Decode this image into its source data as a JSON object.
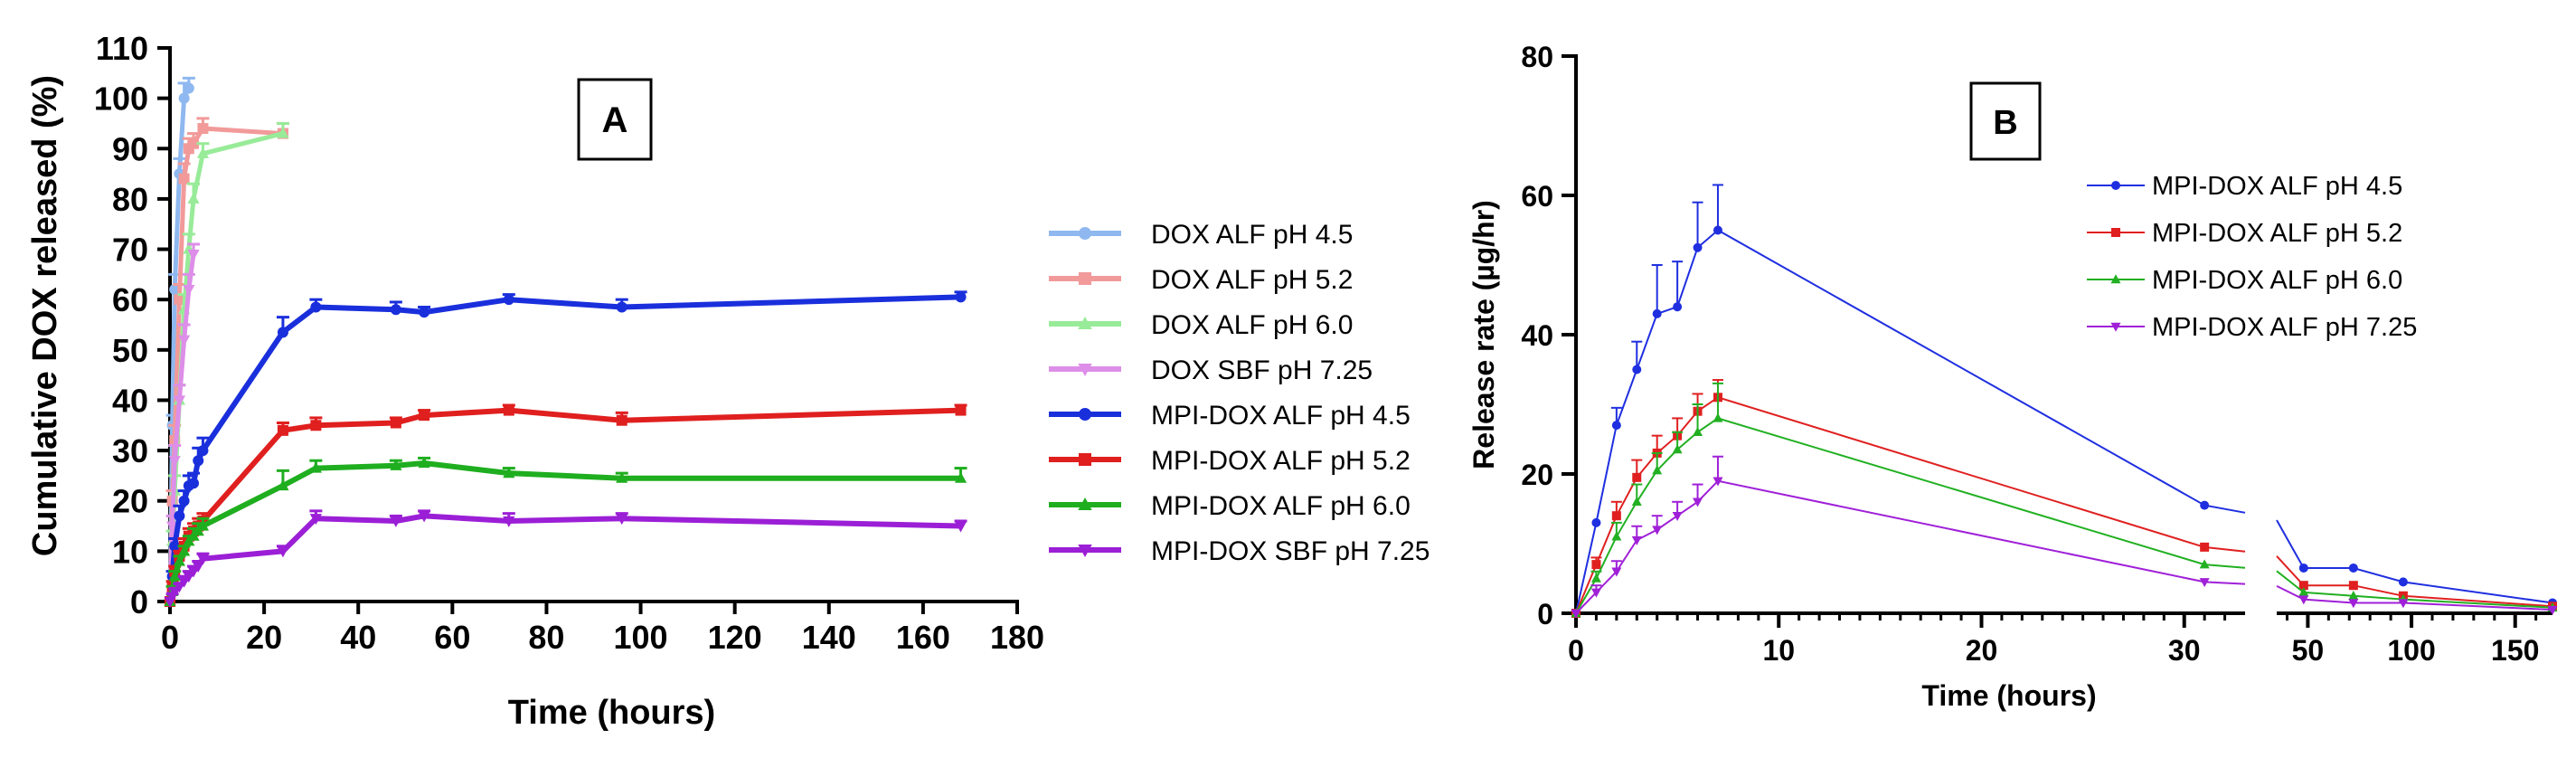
{
  "panel_labels": {
    "a": "A",
    "b": "B"
  },
  "chart_data": [
    {
      "type": "line",
      "panel": "A",
      "title": "",
      "xlabel": "Time (hours)",
      "ylabel": "Cumulative DOX released (%)",
      "xlim": [
        0,
        180
      ],
      "ylim": [
        0,
        110
      ],
      "xticks": [
        0,
        20,
        40,
        60,
        80,
        100,
        120,
        140,
        160,
        180
      ],
      "yticks": [
        0,
        10,
        20,
        30,
        40,
        50,
        60,
        70,
        80,
        90,
        100,
        110
      ],
      "xtick_labels": [
        "0",
        "20",
        "40",
        "60",
        "80",
        "100",
        "120",
        "140",
        "160",
        "180"
      ],
      "ytick_labels": [
        "0",
        "10",
        "20",
        "30",
        "40",
        "50",
        "60",
        "70",
        "80",
        "90",
        "100",
        "110"
      ],
      "grid": false,
      "legend_position": "right",
      "series": [
        {
          "name": "DOX ALF pH 4.5",
          "color": "#8fb8f0",
          "marker": "circle",
          "x": [
            0,
            0.5,
            1,
            2,
            3,
            4
          ],
          "y": [
            0,
            35,
            62,
            85,
            100,
            102
          ],
          "err": [
            0,
            2,
            3,
            3,
            3,
            2
          ]
        },
        {
          "name": "DOX ALF pH 5.2",
          "color": "#f29a9a",
          "marker": "square",
          "x": [
            0,
            0.5,
            1,
            2,
            3,
            4,
            5,
            7,
            24
          ],
          "y": [
            0,
            20,
            32,
            60,
            84,
            90,
            91,
            94,
            93
          ],
          "err": [
            0,
            2,
            3,
            3,
            3,
            2,
            2,
            2,
            2
          ]
        },
        {
          "name": "DOX ALF pH 6.0",
          "color": "#98eb98",
          "marker": "triangle-up",
          "x": [
            0,
            0.5,
            1,
            2,
            3,
            4,
            5,
            7,
            24
          ],
          "y": [
            0,
            12,
            22,
            40,
            58,
            70,
            80,
            89,
            93
          ],
          "err": [
            0,
            2,
            3,
            3,
            3,
            3,
            3,
            2,
            2
          ]
        },
        {
          "name": "DOX SBF pH 7.25",
          "color": "#dd8ee8",
          "marker": "triangle-down",
          "x": [
            0,
            0.5,
            1,
            2,
            3,
            4,
            5
          ],
          "y": [
            0,
            15,
            28,
            40,
            52,
            62,
            69
          ],
          "err": [
            0,
            2,
            3,
            3,
            3,
            3,
            2
          ]
        },
        {
          "name": "MPI-DOX ALF pH 4.5",
          "color": "#1a2fdc",
          "marker": "circle",
          "x": [
            0,
            0.5,
            1,
            2,
            3,
            4,
            5,
            6,
            7,
            24,
            31,
            48,
            54,
            72,
            96,
            168
          ],
          "y": [
            0,
            5,
            11,
            17,
            20,
            23,
            23.5,
            28,
            30,
            53.5,
            58.5,
            58,
            57.5,
            60,
            58.5,
            60.5
          ],
          "err": [
            0,
            1,
            1.5,
            2,
            2,
            2,
            2,
            2.5,
            2.5,
            3,
            1.5,
            1.5,
            1,
            1,
            1.5,
            1
          ]
        },
        {
          "name": "MPI-DOX ALF pH 5.2",
          "color": "#e01f1f",
          "marker": "square",
          "x": [
            0,
            0.5,
            1,
            2,
            3,
            4,
            5,
            6,
            7,
            24,
            31,
            48,
            54,
            72,
            96,
            168
          ],
          "y": [
            0,
            3,
            6,
            9,
            11,
            13,
            14,
            15,
            16,
            34,
            35,
            35.5,
            37,
            38,
            36,
            38
          ],
          "err": [
            0,
            1,
            1,
            1,
            1.5,
            1.5,
            1.5,
            1.5,
            1.5,
            1.5,
            1.5,
            1,
            1,
            1,
            1.5,
            1
          ]
        },
        {
          "name": "MPI-DOX ALF pH 6.0",
          "color": "#1fae1f",
          "marker": "triangle-up",
          "x": [
            0,
            0.5,
            1,
            2,
            3,
            4,
            5,
            6,
            7,
            24,
            31,
            48,
            54,
            72,
            96,
            168
          ],
          "y": [
            0,
            2,
            5,
            8,
            10,
            12,
            13,
            14,
            15,
            23,
            26.5,
            27,
            27.5,
            25.5,
            24.5,
            24.5
          ],
          "err": [
            0,
            1,
            1,
            1,
            1,
            1,
            1.5,
            1.5,
            1.5,
            3,
            1.5,
            1,
            1,
            1,
            1,
            2
          ]
        },
        {
          "name": "MPI-DOX SBF pH 7.25",
          "color": "#9b1fd6",
          "marker": "triangle-down",
          "x": [
            0,
            0.5,
            1,
            2,
            3,
            4,
            5,
            6,
            7,
            24,
            31,
            48,
            54,
            72,
            96,
            168
          ],
          "y": [
            0,
            1,
            2,
            3,
            4,
            5,
            6,
            7,
            8.5,
            10,
            16.5,
            16,
            17,
            16,
            16.5,
            15
          ],
          "err": [
            0,
            0.5,
            0.5,
            0.5,
            1,
            1,
            1,
            1,
            1,
            1,
            1.5,
            1,
            1,
            1.5,
            1,
            1
          ]
        }
      ]
    },
    {
      "type": "line",
      "panel": "B",
      "title": "",
      "xlabel": "Time (hours)",
      "ylabel": "Release rate (µg/hr)",
      "x_axis_broken": true,
      "x_segments": [
        {
          "range": [
            0,
            33
          ]
        },
        {
          "range": [
            35,
            168
          ]
        }
      ],
      "xticks": [
        0,
        10,
        20,
        30,
        50,
        100,
        150
      ],
      "xtick_labels": [
        "0",
        "10",
        "20",
        "30",
        "50",
        "100",
        "150"
      ],
      "ylim": [
        0,
        80
      ],
      "yticks": [
        0,
        20,
        40,
        60,
        80
      ],
      "ytick_labels": [
        "0",
        "20",
        "40",
        "60",
        "80"
      ],
      "grid": false,
      "legend_position": "top-right",
      "series": [
        {
          "name": "MPI-DOX ALF pH 4.5",
          "color": "#1f2fe0",
          "marker": "circle",
          "x": [
            0,
            1,
            2,
            3,
            4,
            5,
            6,
            7,
            31,
            48,
            72,
            96,
            168
          ],
          "y": [
            0,
            13,
            27,
            35,
            43,
            44,
            52.5,
            55,
            15.5,
            6.5,
            6.5,
            4.5,
            1.5
          ],
          "err": [
            0,
            0,
            2.5,
            4,
            7,
            6.5,
            6.5,
            6.5,
            0,
            0,
            0,
            0,
            0
          ]
        },
        {
          "name": "MPI-DOX ALF pH 5.2",
          "color": "#e02020",
          "marker": "square",
          "x": [
            0,
            1,
            2,
            3,
            4,
            5,
            6,
            7,
            31,
            48,
            72,
            96,
            168
          ],
          "y": [
            0,
            7,
            14,
            19.5,
            23,
            25.5,
            29,
            31,
            9.5,
            4,
            4,
            2.5,
            1
          ],
          "err": [
            0,
            1,
            2,
            2.5,
            2.5,
            2.5,
            2.5,
            2.5,
            0,
            0,
            0,
            0,
            0
          ]
        },
        {
          "name": "MPI-DOX ALF pH 6.0",
          "color": "#22b022",
          "marker": "triangle-up",
          "x": [
            0,
            1,
            2,
            3,
            4,
            5,
            6,
            7,
            31,
            48,
            72,
            96,
            168
          ],
          "y": [
            0,
            5,
            11,
            16,
            20.5,
            23.5,
            26,
            28,
            7,
            3,
            2.5,
            2,
            0.8
          ],
          "err": [
            0,
            1,
            2,
            2.5,
            2.5,
            2.5,
            4,
            5,
            0,
            0,
            0,
            0,
            0
          ]
        },
        {
          "name": "MPI-DOX ALF pH 7.25",
          "color": "#a020d8",
          "marker": "triangle-down",
          "x": [
            0,
            1,
            2,
            3,
            4,
            5,
            6,
            7,
            31,
            48,
            72,
            96,
            168
          ],
          "y": [
            0,
            3,
            6,
            10.5,
            12,
            14,
            16,
            19,
            4.5,
            2,
            1.5,
            1.5,
            0.5
          ],
          "err": [
            0,
            1,
            1.5,
            2,
            2,
            2,
            2.5,
            3.5,
            0,
            0,
            0,
            0,
            0
          ]
        }
      ]
    }
  ]
}
